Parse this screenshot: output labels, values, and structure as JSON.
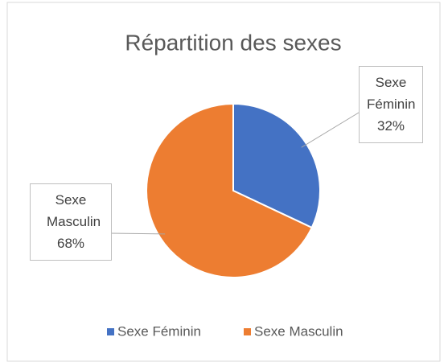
{
  "chart_data": {
    "type": "pie",
    "title": "Répartition des sexes",
    "categories": [
      "Sexe Féminin",
      "Sexe Masculin"
    ],
    "values": [
      32,
      68
    ],
    "value_labels": [
      "32%",
      "68%"
    ],
    "colors": [
      "#4472c4",
      "#ed7d31"
    ],
    "legend": "bottom"
  }
}
